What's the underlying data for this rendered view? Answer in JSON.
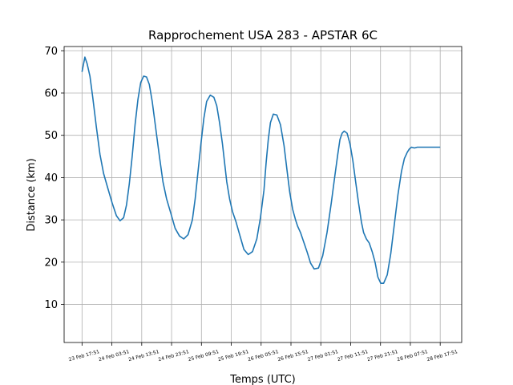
{
  "chart_data": {
    "type": "line",
    "title": "Rapprochement USA 283 - APSTAR 6C",
    "xlabel": "Temps (UTC)",
    "ylabel": "Distance (km)",
    "grid": true,
    "xlim": [
      -0.25,
      5.3
    ],
    "ylim": [
      1,
      71
    ],
    "x_ticks": [
      {
        "pos": 0,
        "label": "23 Feb 17:51"
      },
      {
        "pos": 0.4167,
        "label": "24 Feb 03:51"
      },
      {
        "pos": 0.8333,
        "label": "24 Feb 13:51"
      },
      {
        "pos": 1.25,
        "label": "24 Feb 23:51"
      },
      {
        "pos": 1.6667,
        "label": "25 Feb 09:51"
      },
      {
        "pos": 2.0833,
        "label": "25 Feb 19:51"
      },
      {
        "pos": 2.5,
        "label": "26 Feb 05:51"
      },
      {
        "pos": 2.9167,
        "label": "26 Feb 15:51"
      },
      {
        "pos": 3.3333,
        "label": "27 Feb 01:51"
      },
      {
        "pos": 3.75,
        "label": "27 Feb 11:51"
      },
      {
        "pos": 4.1667,
        "label": "27 Feb 21:51"
      },
      {
        "pos": 4.5833,
        "label": "28 Feb 07:51"
      },
      {
        "pos": 5.0,
        "label": "28 Feb 17:51"
      }
    ],
    "y_ticks": [
      10,
      20,
      30,
      40,
      50,
      60,
      70
    ],
    "series": [
      {
        "color": "#1f77b4",
        "x": [
          0.0,
          0.04,
          0.07,
          0.11,
          0.15,
          0.2,
          0.25,
          0.3,
          0.36,
          0.42,
          0.48,
          0.53,
          0.58,
          0.62,
          0.66,
          0.7,
          0.74,
          0.78,
          0.82,
          0.86,
          0.9,
          0.94,
          0.98,
          1.03,
          1.08,
          1.13,
          1.18,
          1.24,
          1.3,
          1.36,
          1.42,
          1.48,
          1.54,
          1.58,
          1.62,
          1.66,
          1.7,
          1.74,
          1.79,
          1.84,
          1.88,
          1.92,
          1.96,
          1.99,
          2.02,
          2.06,
          2.1,
          2.15,
          2.2,
          2.26,
          2.32,
          2.38,
          2.44,
          2.49,
          2.54,
          2.57,
          2.6,
          2.63,
          2.67,
          2.72,
          2.77,
          2.82,
          2.86,
          2.9,
          2.94,
          2.98,
          3.01,
          3.05,
          3.09,
          3.14,
          3.19,
          3.24,
          3.3,
          3.36,
          3.42,
          3.48,
          3.53,
          3.57,
          3.6,
          3.63,
          3.66,
          3.7,
          3.74,
          3.78,
          3.82,
          3.86,
          3.9,
          3.93,
          3.97,
          4.01,
          4.05,
          4.09,
          4.13,
          4.17,
          4.21,
          4.26,
          4.31,
          4.36,
          4.41,
          4.46,
          4.5,
          4.54,
          4.57,
          4.6,
          4.64,
          4.68,
          4.72,
          4.76,
          4.8,
          4.84,
          4.88,
          4.91,
          4.94,
          4.97,
          5.0
        ],
        "y": [
          65.0,
          68.5,
          67.0,
          64.0,
          59.0,
          52.0,
          45.5,
          41.0,
          37.5,
          34.0,
          31.0,
          29.8,
          30.5,
          33.5,
          38.5,
          45.0,
          52.5,
          58.5,
          62.5,
          64.0,
          63.8,
          62.0,
          58.0,
          51.5,
          45.0,
          39.0,
          35.0,
          31.5,
          28.0,
          26.2,
          25.5,
          26.5,
          30.0,
          35.0,
          41.5,
          48.0,
          54.0,
          58.0,
          59.5,
          59.0,
          57.0,
          53.0,
          48.0,
          43.5,
          39.0,
          35.0,
          32.0,
          29.5,
          26.5,
          23.0,
          21.8,
          22.5,
          25.5,
          30.5,
          37.0,
          43.5,
          49.0,
          53.0,
          55.0,
          54.8,
          52.5,
          47.5,
          42.0,
          36.5,
          32.5,
          30.0,
          28.5,
          27.0,
          25.0,
          22.5,
          19.8,
          18.4,
          18.6,
          21.5,
          27.0,
          34.0,
          40.5,
          45.5,
          49.0,
          50.5,
          51.0,
          50.5,
          48.0,
          44.0,
          39.0,
          34.0,
          29.5,
          27.0,
          25.5,
          24.5,
          22.5,
          20.0,
          16.5,
          15.0,
          15.0,
          17.0,
          22.0,
          29.0,
          36.0,
          41.5,
          44.5,
          46.0,
          46.8,
          47.2,
          47.0,
          47.2,
          47.2,
          47.2,
          47.2,
          47.2,
          47.2,
          47.2,
          47.2,
          47.2,
          47.2
        ]
      }
    ]
  }
}
